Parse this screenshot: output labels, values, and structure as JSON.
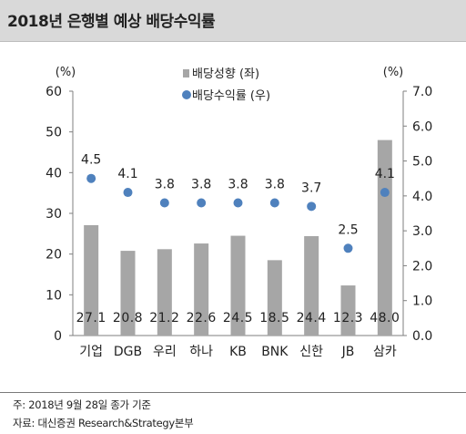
{
  "title": "2018년 은행별 예상 배당수익률",
  "notes": {
    "line1": "주: 2018년 9월 28일 종가 기준",
    "line2": "자료: 대신증권 Research&Strategy본부"
  },
  "chart_data": {
    "type": "bar+scatter",
    "categories": [
      "기업",
      "DGB",
      "우리",
      "하나",
      "KB",
      "BNK",
      "신한",
      "JB",
      "삼카"
    ],
    "series": [
      {
        "name": "배당성향 (좌)",
        "type": "bar",
        "axis": "left",
        "values": [
          27.1,
          20.8,
          21.2,
          22.6,
          24.5,
          18.5,
          24.4,
          12.3,
          48.0
        ],
        "labels": [
          "27.1",
          "20.8",
          "21.2",
          "22.6",
          "24.5",
          "18.5",
          "24.4",
          "12.3",
          "48.0"
        ],
        "color": "#a6a6a6"
      },
      {
        "name": "배당수익률 (우)",
        "type": "scatter",
        "axis": "right",
        "values": [
          4.5,
          4.1,
          3.8,
          3.8,
          3.8,
          3.8,
          3.7,
          2.5,
          4.1
        ],
        "labels": [
          "4.5",
          "4.1",
          "3.8",
          "3.8",
          "3.8",
          "3.8",
          "3.7",
          "2.5",
          "4.1"
        ],
        "color": "#4f81bd"
      }
    ],
    "y_left": {
      "unit": "(%)",
      "min": 0,
      "max": 60,
      "ticks": [
        "0",
        "10",
        "20",
        "30",
        "40",
        "50",
        "60"
      ]
    },
    "y_right": {
      "unit": "(%)",
      "min": 0,
      "max": 7,
      "ticks": [
        "0.0",
        "1.0",
        "2.0",
        "3.0",
        "4.0",
        "5.0",
        "6.0",
        "7.0"
      ]
    },
    "grid": false,
    "legend": "top-center"
  }
}
